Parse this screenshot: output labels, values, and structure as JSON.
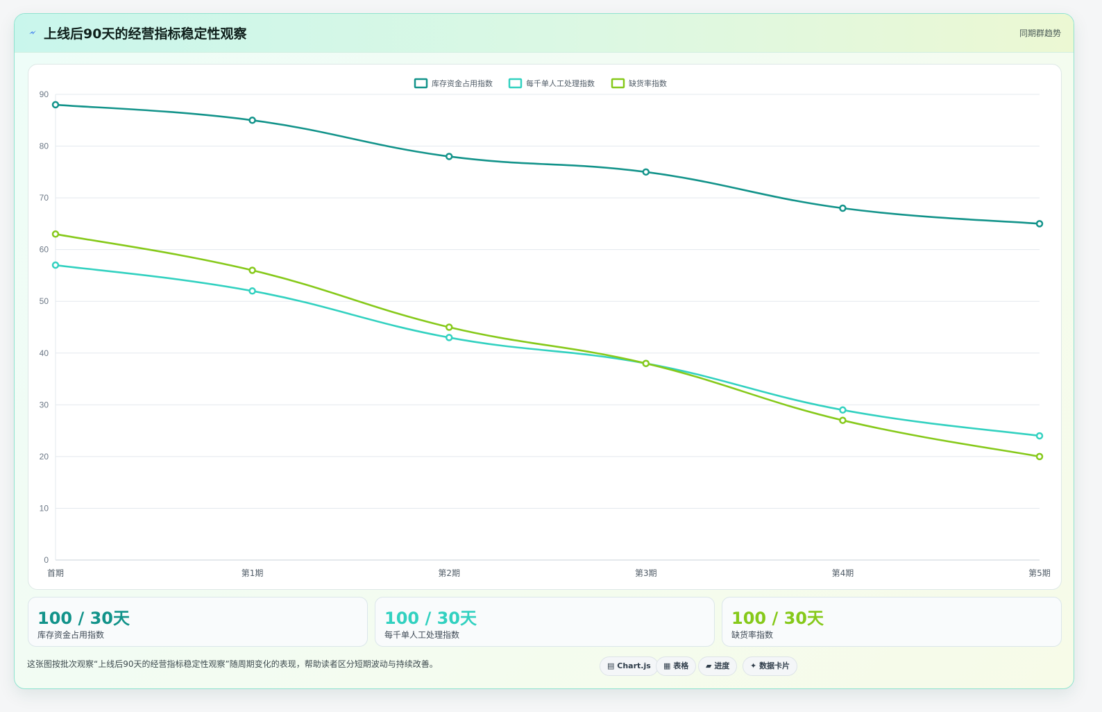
{
  "header": {
    "title": "上线后90天的经营指标稳定性观察",
    "tag": "同期群趋势"
  },
  "colors": {
    "series1": "#12938a",
    "series2": "#32d1c0",
    "series3": "#86c91a"
  },
  "chart_data": {
    "type": "line",
    "categories": [
      "首期",
      "第1期",
      "第2期",
      "第3期",
      "第4期",
      "第5期"
    ],
    "series": [
      {
        "name": "库存资金占用指数",
        "values": [
          88,
          85,
          78,
          75,
          68,
          65
        ]
      },
      {
        "name": "每千单人工处理指数",
        "values": [
          57,
          52,
          43,
          38,
          29,
          24
        ]
      },
      {
        "name": "缺货率指数",
        "values": [
          63,
          56,
          45,
          38,
          27,
          20
        ]
      }
    ],
    "ylim": [
      0,
      90
    ],
    "yticks": [
      0,
      10,
      20,
      30,
      40,
      50,
      60,
      70,
      80,
      90
    ],
    "grid": true,
    "legend": "top-center"
  },
  "kpis": [
    {
      "value": "100 / 30天",
      "label": "库存资金占用指数"
    },
    {
      "value": "100 / 30天",
      "label": "每千单人工处理指数"
    },
    {
      "value": "100 / 30天",
      "label": "缺货率指数"
    }
  ],
  "footer": {
    "note": "这张图按批次观察“上线后90天的经营指标稳定性观察”随周期变化的表现，帮助读者区分短期波动与持续改善。",
    "pills": [
      {
        "icon": "▤",
        "label": "Chart.js"
      },
      {
        "icon": "▦",
        "label": "表格"
      },
      {
        "icon": "▰",
        "label": "进度"
      },
      {
        "icon": "✦",
        "label": "数据卡片"
      }
    ]
  }
}
